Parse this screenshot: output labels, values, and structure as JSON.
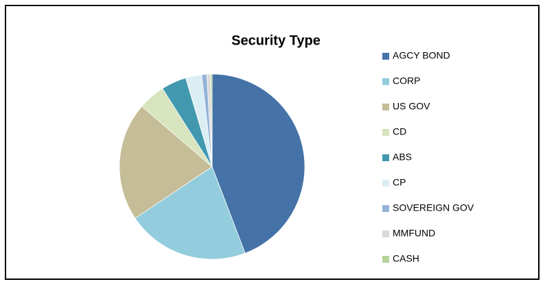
{
  "chart_data": {
    "type": "pie",
    "title": "Security Type",
    "categories": [
      "AGCY BOND",
      "CORP",
      "US GOV",
      "CD",
      "ABS",
      "CP",
      "SOVEREIGN GOV",
      "MMFUND",
      "CASH"
    ],
    "values": [
      44.2,
      21.4,
      20.7,
      4.7,
      4.4,
      2.8,
      0.9,
      0.6,
      0.3
    ],
    "colors": [
      "#4572a7",
      "#93cddd",
      "#c4bd97",
      "#d7e4bd",
      "#4198af",
      "#dbeef4",
      "#95b3d7",
      "#d9d9d9",
      "#b3d39a"
    ],
    "legend": "right"
  }
}
